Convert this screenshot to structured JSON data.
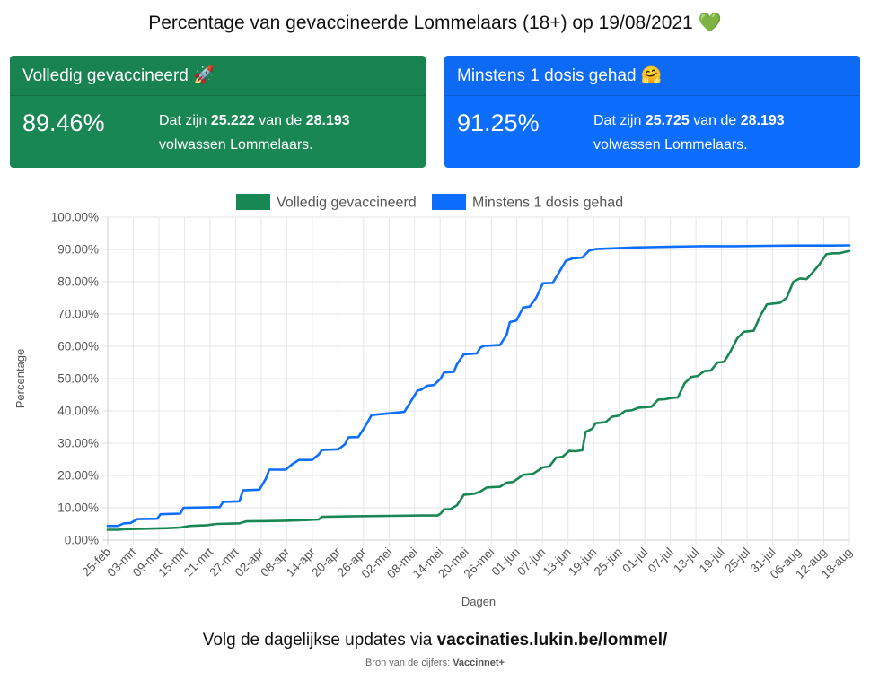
{
  "header": {
    "title": "Percentage van gevaccineerde Lommelaars (18+) op 19/08/2021",
    "emoji": "💚"
  },
  "cards": [
    {
      "heading": "Volledig gevaccineerd",
      "emoji": "🚀",
      "percentage": "89.46%",
      "text_prefix": "Dat zijn",
      "count": "25.222",
      "text_mid": "van de",
      "total": "28.193",
      "text_suffix": "volwassen Lommelaars.",
      "color": "#198754"
    },
    {
      "heading": "Minstens 1 dosis gehad",
      "emoji": "🤗",
      "percentage": "91.25%",
      "text_prefix": "Dat zijn",
      "count": "25.725",
      "text_mid": "van de",
      "total": "28.193",
      "text_suffix": "volwassen Lommelaars.",
      "color": "#0d6efd"
    }
  ],
  "chart_data": {
    "type": "line",
    "xlabel": "Dagen",
    "ylabel": "Percentage",
    "ylim": [
      0,
      100
    ],
    "yticks": [
      "0.00%",
      "10.00%",
      "20.00%",
      "30.00%",
      "40.00%",
      "50.00%",
      "60.00%",
      "70.00%",
      "80.00%",
      "90.00%",
      "100.00%"
    ],
    "xticks": [
      "25-feb",
      "03-mrt",
      "09-mrt",
      "15-mrt",
      "21-mrt",
      "27-mrt",
      "02-apr",
      "08-apr",
      "14-apr",
      "20-apr",
      "26-apr",
      "02-mei",
      "08-mei",
      "14-mei",
      "20-mei",
      "26-mei",
      "01-jun",
      "07-jun",
      "13-jun",
      "19-jun",
      "25-jun",
      "01-jul",
      "07-jul",
      "13-jul",
      "19-jul",
      "25-jul",
      "31-jul",
      "06-aug",
      "12-aug",
      "18-aug"
    ],
    "legend_position": "top",
    "grid": true,
    "series": [
      {
        "name": "Volledig gevaccineerd",
        "color": "#198754",
        "points": [
          [
            0,
            3.2
          ],
          [
            3,
            3.2
          ],
          [
            5,
            3.4
          ],
          [
            10,
            3.5
          ],
          [
            18,
            3.7
          ],
          [
            22,
            3.9
          ],
          [
            25,
            4.4
          ],
          [
            30,
            4.6
          ],
          [
            33,
            5.0
          ],
          [
            40,
            5.2
          ],
          [
            42,
            5.8
          ],
          [
            48,
            5.9
          ],
          [
            54,
            6.0
          ],
          [
            60,
            6.2
          ],
          [
            64,
            6.4
          ],
          [
            65,
            7.2
          ],
          [
            75,
            7.4
          ],
          [
            86,
            7.5
          ],
          [
            95,
            7.6
          ],
          [
            100,
            7.6
          ],
          [
            101,
            8.2
          ],
          [
            102,
            9.5
          ],
          [
            104,
            9.6
          ],
          [
            106,
            10.8
          ],
          [
            108,
            14.0
          ],
          [
            111,
            14.3
          ],
          [
            113,
            15.0
          ],
          [
            115,
            16.3
          ],
          [
            119,
            16.5
          ],
          [
            121,
            17.8
          ],
          [
            123,
            18.0
          ],
          [
            126,
            20.2
          ],
          [
            129,
            20.5
          ],
          [
            132,
            22.5
          ],
          [
            134,
            22.8
          ],
          [
            136,
            25.5
          ],
          [
            138,
            25.8
          ],
          [
            140,
            27.6
          ],
          [
            142,
            27.5
          ],
          [
            144,
            27.8
          ],
          [
            145,
            33.5
          ],
          [
            147,
            34.5
          ],
          [
            148,
            36.2
          ],
          [
            151,
            36.5
          ],
          [
            153,
            38.2
          ],
          [
            155,
            38.5
          ],
          [
            157,
            40.0
          ],
          [
            159,
            40.2
          ],
          [
            161,
            41.0
          ],
          [
            163,
            41.1
          ],
          [
            165,
            41.3
          ],
          [
            167,
            43.5
          ],
          [
            169,
            43.6
          ],
          [
            171,
            44.0
          ],
          [
            173,
            44.2
          ],
          [
            175,
            48.5
          ],
          [
            177,
            50.5
          ],
          [
            179,
            50.8
          ],
          [
            181,
            52.3
          ],
          [
            183,
            52.5
          ],
          [
            185,
            55.0
          ],
          [
            187,
            55.2
          ],
          [
            189,
            58.5
          ],
          [
            191,
            62.5
          ],
          [
            193,
            64.5
          ],
          [
            196,
            64.8
          ],
          [
            198,
            69.5
          ],
          [
            200,
            73.0
          ],
          [
            204,
            73.5
          ],
          [
            206,
            75.0
          ],
          [
            208,
            80.0
          ],
          [
            210,
            81.0
          ],
          [
            212,
            80.8
          ],
          [
            214,
            83.0
          ],
          [
            216,
            85.5
          ],
          [
            218,
            88.5
          ],
          [
            220,
            88.8
          ],
          [
            222,
            88.8
          ],
          [
            224,
            89.3
          ],
          [
            225,
            89.46
          ]
        ]
      },
      {
        "name": "Minstens 1 dosis gehad",
        "color": "#0d6efd",
        "points": [
          [
            0,
            4.4
          ],
          [
            3,
            4.4
          ],
          [
            5,
            5.2
          ],
          [
            7,
            5.3
          ],
          [
            9,
            6.5
          ],
          [
            15,
            6.6
          ],
          [
            16,
            8.0
          ],
          [
            22,
            8.2
          ],
          [
            23,
            10.0
          ],
          [
            34,
            10.2
          ],
          [
            35,
            11.8
          ],
          [
            40,
            12.0
          ],
          [
            41,
            15.4
          ],
          [
            46,
            15.6
          ],
          [
            48,
            19.0
          ],
          [
            49,
            21.8
          ],
          [
            54,
            21.8
          ],
          [
            56,
            23.5
          ],
          [
            58,
            24.8
          ],
          [
            62,
            24.8
          ],
          [
            64,
            26.5
          ],
          [
            65,
            27.9
          ],
          [
            70,
            28.1
          ],
          [
            72,
            29.7
          ],
          [
            73,
            31.8
          ],
          [
            76,
            31.9
          ],
          [
            78,
            35.0
          ],
          [
            80,
            38.6
          ],
          [
            81,
            38.8
          ],
          [
            88,
            39.5
          ],
          [
            90,
            39.7
          ],
          [
            92,
            43.0
          ],
          [
            94,
            46.3
          ],
          [
            95,
            46.5
          ],
          [
            97,
            47.8
          ],
          [
            99,
            48.0
          ],
          [
            101,
            50.0
          ],
          [
            102,
            51.9
          ],
          [
            105,
            52.1
          ],
          [
            106,
            54.5
          ],
          [
            108,
            57.5
          ],
          [
            112,
            57.8
          ],
          [
            113,
            59.5
          ],
          [
            114,
            60.1
          ],
          [
            119,
            60.4
          ],
          [
            121,
            63.5
          ],
          [
            122,
            67.5
          ],
          [
            124,
            68.0
          ],
          [
            126,
            72.0
          ],
          [
            128,
            72.3
          ],
          [
            130,
            75.0
          ],
          [
            132,
            79.5
          ],
          [
            135,
            79.6
          ],
          [
            137,
            83.0
          ],
          [
            139,
            86.5
          ],
          [
            141,
            87.2
          ],
          [
            144,
            87.5
          ],
          [
            146,
            89.6
          ],
          [
            148,
            90.1
          ],
          [
            160,
            90.6
          ],
          [
            164,
            90.7
          ],
          [
            170,
            90.8
          ],
          [
            180,
            91.0
          ],
          [
            190,
            91.0
          ],
          [
            200,
            91.1
          ],
          [
            210,
            91.2
          ],
          [
            220,
            91.2
          ],
          [
            225,
            91.25
          ]
        ]
      }
    ],
    "x_max": 225
  },
  "footer": {
    "prefix": "Volg de dagelijkse updates via",
    "link": "vaccinaties.lukin.be/lommel/",
    "source_prefix": "Bron van de cijfers:",
    "source_name": "Vaccinnet+"
  }
}
